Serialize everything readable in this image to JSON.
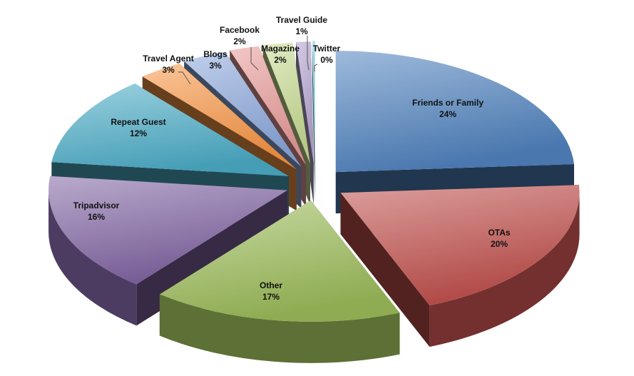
{
  "chart_data": {
    "type": "pie",
    "style": "3d-exploded",
    "slices": [
      {
        "label": "Friends or Family",
        "value": 24,
        "value_label": "24%",
        "color": "#4f81bd"
      },
      {
        "label": "OTAs",
        "value": 20,
        "value_label": "20%",
        "color": "#c0504d"
      },
      {
        "label": "Other",
        "value": 17,
        "value_label": "17%",
        "color": "#9bbb59"
      },
      {
        "label": "Tripadvisor",
        "value": 16,
        "value_label": "16%",
        "color": "#8064a2"
      },
      {
        "label": "Repeat Guest",
        "value": 12,
        "value_label": "12%",
        "color": "#4bacc6"
      },
      {
        "label": "Travel Agent",
        "value": 3,
        "value_label": "3%",
        "color": "#f79646"
      },
      {
        "label": "Blogs",
        "value": 3,
        "value_label": "3%",
        "color": "#8ca8dc"
      },
      {
        "label": "Facebook",
        "value": 2,
        "value_label": "2%",
        "color": "#e89b99"
      },
      {
        "label": "Magazine",
        "value": 2,
        "value_label": "2%",
        "color": "#c8dc94"
      },
      {
        "label": "Travel Guide",
        "value": 1,
        "value_label": "1%",
        "color": "#b3a2cf"
      },
      {
        "label": "Twitter",
        "value": 0,
        "value_label": "0%",
        "color": "#7fd0e3"
      }
    ],
    "title": "",
    "legend": "none",
    "data_labels": "category-and-percent"
  }
}
